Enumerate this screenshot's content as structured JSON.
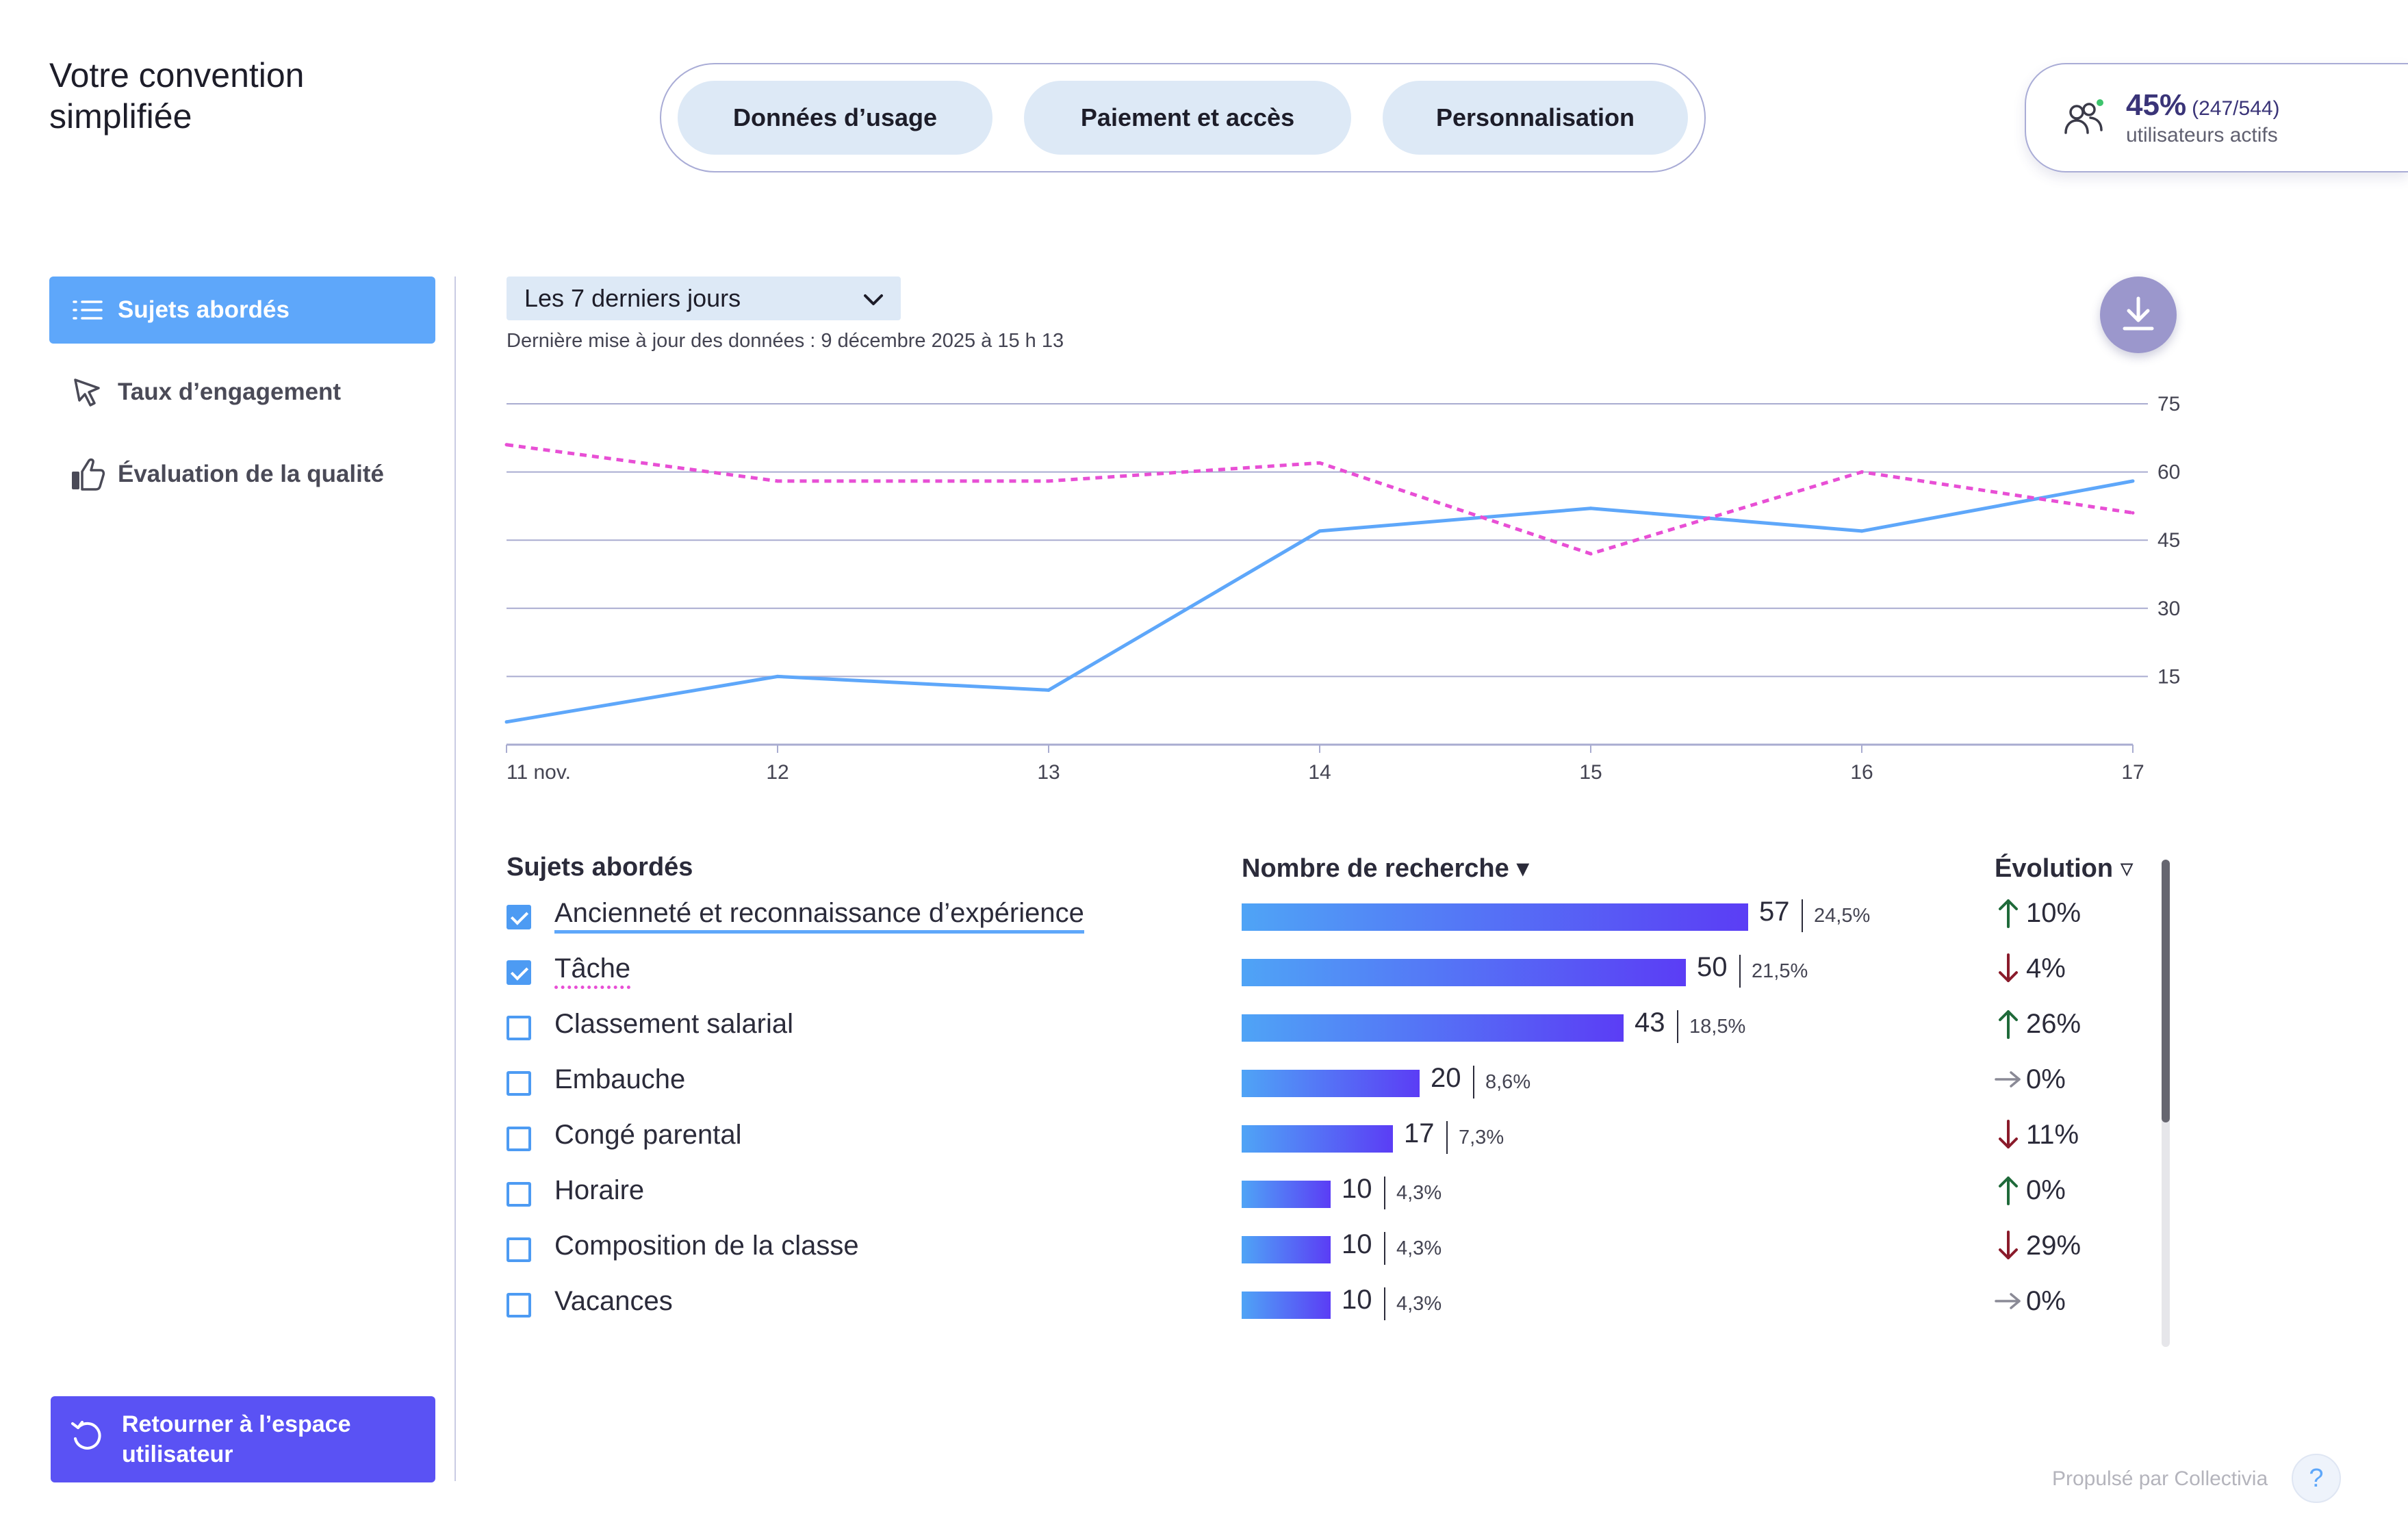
{
  "app": {
    "title": "Votre convention simplifiée"
  },
  "tabs": [
    {
      "label": "Données d’usage",
      "active": true
    },
    {
      "label": "Paiement et accès",
      "active": false
    },
    {
      "label": "Personnalisation",
      "active": false
    }
  ],
  "users": {
    "percent": "45%",
    "ratio": "(247/544)",
    "label": "utilisateurs actifs",
    "icon": "users-icon",
    "status_color": "#3ec46d"
  },
  "sidebar": {
    "items": [
      {
        "label": "Sujets abordés",
        "icon": "list-icon",
        "active": true
      },
      {
        "label": "Taux d’engagement",
        "icon": "cursor-icon",
        "active": false
      },
      {
        "label": "Évaluation de la qualité",
        "icon": "thumbs-up-icon",
        "active": false
      }
    ],
    "back_button": {
      "label": "Retourner à l’espace utilisateur",
      "icon": "undo-icon"
    }
  },
  "filters": {
    "period": "Les 7 derniers jours",
    "updated": "Dernière mise à jour des données : 9 décembre 2025 à 15 h 13"
  },
  "download": {
    "icon": "download-icon"
  },
  "chart_data": {
    "type": "line",
    "categories": [
      "11 nov.",
      "12",
      "13",
      "14",
      "15",
      "16",
      "17"
    ],
    "series": [
      {
        "values": [
          5,
          15,
          12,
          47,
          52,
          47,
          58
        ],
        "color": "#5ea7fa",
        "style": "solid"
      },
      {
        "values": [
          66,
          58,
          58,
          62,
          42,
          60,
          51
        ],
        "color": "#e84fd5",
        "style": "dotted"
      }
    ],
    "yticks": [
      15,
      30,
      45,
      60,
      75
    ],
    "ylim": [
      0,
      75
    ],
    "grid": true,
    "axis_side": "right"
  },
  "table": {
    "headers": {
      "topics": "Sujets abordés",
      "count": "Nombre de recherche ▾",
      "evolution": "Évolution ▿"
    },
    "rows": [
      {
        "label": "Ancienneté et reconnaissance d’expérience",
        "checked": true,
        "underline": "solid",
        "count": 57,
        "percent": "24,5%",
        "trend": "up",
        "evolution": "10%"
      },
      {
        "label": "Tâche",
        "checked": true,
        "underline": "dotted",
        "count": 50,
        "percent": "21,5%",
        "trend": "down",
        "evolution": "4%"
      },
      {
        "label": "Classement salarial",
        "checked": false,
        "underline": "",
        "count": 43,
        "percent": "18,5%",
        "trend": "up",
        "evolution": "26%"
      },
      {
        "label": "Embauche",
        "checked": false,
        "underline": "",
        "count": 20,
        "percent": "8,6%",
        "trend": "flat",
        "evolution": "0%"
      },
      {
        "label": "Congé parental",
        "checked": false,
        "underline": "",
        "count": 17,
        "percent": "7,3%",
        "trend": "down",
        "evolution": "11%"
      },
      {
        "label": "Horaire",
        "checked": false,
        "underline": "",
        "count": 10,
        "percent": "4,3%",
        "trend": "up",
        "evolution": "0%"
      },
      {
        "label": "Composition de la classe",
        "checked": false,
        "underline": "",
        "count": 10,
        "percent": "4,3%",
        "trend": "down",
        "evolution": "29%"
      },
      {
        "label": "Vacances",
        "checked": false,
        "underline": "",
        "count": 10,
        "percent": "4,3%",
        "trend": "flat",
        "evolution": "0%"
      }
    ],
    "trend_colors": {
      "up": "#1f6a3a",
      "down": "#8a1b2b",
      "flat": "#8a8a96"
    }
  },
  "footer": {
    "powered_by": "Propulsé par Collectivia",
    "help_label": "?"
  }
}
